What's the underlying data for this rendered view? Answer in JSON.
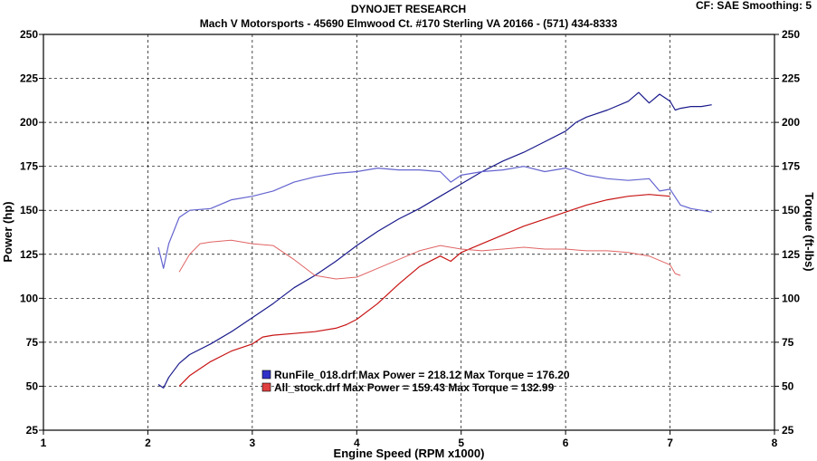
{
  "header": {
    "title": "DYNOJET RESEARCH",
    "subtitle": "Mach V Motorsports - 45690 Elmwood Ct. #170 Sterling VA 20166 - (571) 434-8333",
    "settings": "CF: SAE  Smoothing: 5"
  },
  "chart_data": {
    "type": "line",
    "title": "DYNOJET RESEARCH",
    "subtitle": "Mach V Motorsports - 45690 Elmwood Ct. #170 Sterling VA 20166 - (571) 434-8333",
    "xlabel": "Engine Speed (RPM x1000)",
    "ylabel_left": "Power (hp)",
    "ylabel_right": "Torque (ft-lbs)",
    "xlim": [
      1,
      8
    ],
    "ylim": [
      25,
      250
    ],
    "x_ticks": [
      "1",
      "2",
      "3",
      "4",
      "5",
      "6",
      "7",
      "8"
    ],
    "y_ticks": [
      "25",
      "50",
      "75",
      "100",
      "125",
      "150",
      "175",
      "200",
      "225",
      "250"
    ],
    "grid": true,
    "colors": {
      "blue": "#1a1a8c",
      "blue_light": "#6464d0",
      "red": "#c81414",
      "red_light": "#e06464"
    },
    "legend": [
      {
        "text": "RunFile_018.drf Max Power = 218.12      Max Torque = 176.20",
        "color": "#1a1a8c"
      },
      {
        "text": "All_stock.drf Max Power = 159.43      Max Torque = 132.99",
        "color": "#c81414"
      }
    ],
    "series": [
      {
        "name": "RunFile_018.drf",
        "measure": "power",
        "color": "#1a1a8c",
        "width": 1.2,
        "x": [
          2.1,
          2.15,
          2.2,
          2.3,
          2.4,
          2.6,
          2.8,
          3.0,
          3.2,
          3.4,
          3.6,
          3.8,
          4.0,
          4.2,
          4.4,
          4.6,
          4.8,
          5.0,
          5.2,
          5.4,
          5.6,
          5.8,
          6.0,
          6.1,
          6.2,
          6.4,
          6.6,
          6.7,
          6.8,
          6.9,
          7.0,
          7.05,
          7.1,
          7.2,
          7.3,
          7.4
        ],
        "y": [
          51,
          49,
          55,
          63,
          68,
          74,
          81,
          89,
          97,
          106,
          113,
          121,
          130,
          138,
          145,
          151,
          158,
          165,
          172,
          178,
          183,
          189,
          195,
          200,
          203,
          207,
          212,
          217,
          211,
          216,
          212,
          207,
          208,
          209,
          209,
          210
        ]
      },
      {
        "name": "RunFile_018.drf",
        "measure": "torque",
        "color": "#6464d0",
        "width": 1.2,
        "x": [
          2.1,
          2.15,
          2.2,
          2.3,
          2.4,
          2.6,
          2.8,
          3.0,
          3.2,
          3.4,
          3.6,
          3.8,
          4.0,
          4.2,
          4.4,
          4.6,
          4.8,
          4.9,
          5.0,
          5.2,
          5.4,
          5.6,
          5.8,
          6.0,
          6.2,
          6.4,
          6.6,
          6.8,
          6.9,
          7.0,
          7.1,
          7.2,
          7.3,
          7.4
        ],
        "y": [
          129,
          117,
          131,
          146,
          150,
          151,
          156,
          158,
          161,
          166,
          169,
          171,
          172,
          174,
          173,
          173,
          172,
          166,
          170,
          172,
          173,
          175,
          172,
          174,
          170,
          168,
          167,
          168,
          161,
          162,
          153,
          151,
          150,
          149
        ]
      },
      {
        "name": "All_stock.drf",
        "measure": "power",
        "color": "#c81414",
        "width": 1.2,
        "x": [
          2.3,
          2.4,
          2.6,
          2.8,
          3.0,
          3.1,
          3.2,
          3.4,
          3.6,
          3.8,
          3.9,
          4.0,
          4.2,
          4.4,
          4.6,
          4.8,
          4.9,
          5.0,
          5.2,
          5.4,
          5.6,
          5.8,
          6.0,
          6.2,
          6.4,
          6.6,
          6.8,
          7.0
        ],
        "y": [
          50,
          56,
          64,
          70,
          74,
          78,
          79,
          80,
          81,
          83,
          85,
          88,
          97,
          108,
          118,
          124,
          121,
          126,
          131,
          136,
          141,
          145,
          149,
          153,
          156,
          158,
          159,
          158
        ]
      },
      {
        "name": "All_stock.drf",
        "measure": "torque",
        "color": "#e06464",
        "width": 1.0,
        "x": [
          2.3,
          2.4,
          2.5,
          2.6,
          2.8,
          3.0,
          3.2,
          3.4,
          3.6,
          3.8,
          4.0,
          4.2,
          4.4,
          4.6,
          4.8,
          5.0,
          5.2,
          5.4,
          5.6,
          5.8,
          6.0,
          6.2,
          6.4,
          6.6,
          6.8,
          7.0,
          7.05,
          7.1
        ],
        "y": [
          115,
          125,
          131,
          132,
          133,
          131,
          130,
          122,
          113,
          111,
          112,
          117,
          122,
          127,
          130,
          128,
          127,
          128,
          129,
          128,
          128,
          127,
          127,
          126,
          124,
          119,
          114,
          113
        ]
      }
    ]
  }
}
